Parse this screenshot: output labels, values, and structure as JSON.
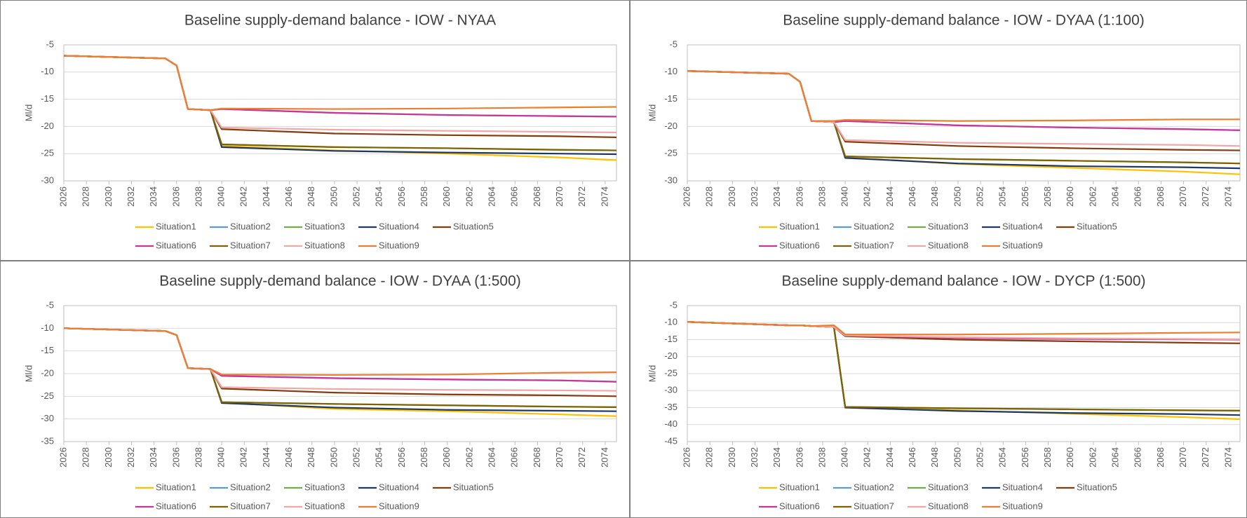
{
  "chart_data": [
    {
      "type": "line",
      "title": "Baseline supply-demand balance - IOW - NYAA",
      "y_label": "Ml/d",
      "x": [
        2026,
        2035,
        2036,
        2037,
        2039,
        2040,
        2050,
        2060,
        2070,
        2075
      ],
      "xlim": [
        2026,
        2075
      ],
      "xticks": [
        2026,
        2028,
        2030,
        2032,
        2034,
        2036,
        2038,
        2040,
        2042,
        2044,
        2046,
        2048,
        2050,
        2052,
        2054,
        2056,
        2058,
        2060,
        2062,
        2064,
        2066,
        2068,
        2070,
        2072,
        2074
      ],
      "ylim": [
        -30,
        -5
      ],
      "yticks": [
        -30,
        -25,
        -20,
        -15,
        -10,
        -5
      ],
      "grid": true,
      "series": [
        {
          "name": "Situation1",
          "color": "#ffc000",
          "values": [
            -7,
            -7.5,
            -8.8,
            -16.8,
            -17.0,
            -23.6,
            -24.4,
            -25.0,
            -25.7,
            -26.2
          ]
        },
        {
          "name": "Situation2",
          "color": "#5b9bd5",
          "values": [
            -7,
            -7.5,
            -8.8,
            -16.8,
            -17.0,
            -16.8,
            -17.5,
            -17.9,
            -18.1,
            -18.2
          ]
        },
        {
          "name": "Situation3",
          "color": "#70ad47",
          "values": [
            -7,
            -7.5,
            -8.8,
            -16.8,
            -17.0,
            -23.3,
            -23.8,
            -24.0,
            -24.3,
            -24.4
          ]
        },
        {
          "name": "Situation4",
          "color": "#1f3864",
          "values": [
            -7,
            -7.5,
            -8.8,
            -16.8,
            -17.0,
            -23.8,
            -24.5,
            -24.8,
            -25.0,
            -25.1
          ]
        },
        {
          "name": "Situation5",
          "color": "#843c0c",
          "values": [
            -7,
            -7.5,
            -8.8,
            -16.8,
            -17.0,
            -20.5,
            -21.3,
            -21.6,
            -21.8,
            -22.0
          ]
        },
        {
          "name": "Situation6",
          "color": "#cc3399",
          "values": [
            -7,
            -7.5,
            -8.8,
            -16.8,
            -17.0,
            -16.8,
            -17.5,
            -17.9,
            -18.1,
            -18.2
          ]
        },
        {
          "name": "Situation7",
          "color": "#806000",
          "values": [
            -7,
            -7.5,
            -8.8,
            -16.8,
            -17.0,
            -23.3,
            -23.8,
            -24.0,
            -24.3,
            -24.4
          ]
        },
        {
          "name": "Situation8",
          "color": "#f4a6a6",
          "values": [
            -7,
            -7.5,
            -8.8,
            -16.8,
            -17.0,
            -20.2,
            -20.6,
            -20.8,
            -21.0,
            -21.1
          ]
        },
        {
          "name": "Situation9",
          "color": "#ed7d31",
          "values": [
            -7,
            -7.5,
            -8.8,
            -16.8,
            -17.0,
            -16.7,
            -16.8,
            -16.7,
            -16.5,
            -16.4
          ]
        }
      ]
    },
    {
      "type": "line",
      "title": "Baseline supply-demand balance - IOW - DYAA (1:100)",
      "y_label": "Ml/d",
      "x": [
        2026,
        2035,
        2036,
        2037,
        2039,
        2040,
        2050,
        2060,
        2070,
        2075
      ],
      "xlim": [
        2026,
        2075
      ],
      "xticks": [
        2026,
        2028,
        2030,
        2032,
        2034,
        2036,
        2038,
        2040,
        2042,
        2044,
        2046,
        2048,
        2050,
        2052,
        2054,
        2056,
        2058,
        2060,
        2062,
        2064,
        2066,
        2068,
        2070,
        2072,
        2074
      ],
      "ylim": [
        -30,
        -5
      ],
      "yticks": [
        -30,
        -25,
        -20,
        -15,
        -10,
        -5
      ],
      "grid": true,
      "series": [
        {
          "name": "Situation1",
          "color": "#ffc000",
          "values": [
            -9.8,
            -10.3,
            -11.8,
            -19.0,
            -19.2,
            -25.7,
            -26.9,
            -27.6,
            -28.3,
            -28.8
          ]
        },
        {
          "name": "Situation2",
          "color": "#5b9bd5",
          "values": [
            -9.8,
            -10.3,
            -11.8,
            -19.0,
            -19.2,
            -19.0,
            -19.8,
            -20.2,
            -20.5,
            -20.7
          ]
        },
        {
          "name": "Situation3",
          "color": "#70ad47",
          "values": [
            -9.8,
            -10.3,
            -11.8,
            -19.0,
            -19.2,
            -25.5,
            -26.0,
            -26.3,
            -26.6,
            -26.8
          ]
        },
        {
          "name": "Situation4",
          "color": "#1f3864",
          "values": [
            -9.8,
            -10.3,
            -11.8,
            -19.0,
            -19.2,
            -25.8,
            -26.8,
            -27.3,
            -27.5,
            -27.7
          ]
        },
        {
          "name": "Situation5",
          "color": "#843c0c",
          "values": [
            -9.8,
            -10.3,
            -11.8,
            -19.0,
            -19.2,
            -22.8,
            -23.6,
            -24.0,
            -24.3,
            -24.4
          ]
        },
        {
          "name": "Situation6",
          "color": "#cc3399",
          "values": [
            -9.8,
            -10.3,
            -11.8,
            -19.0,
            -19.2,
            -19.0,
            -19.8,
            -20.2,
            -20.5,
            -20.7
          ]
        },
        {
          "name": "Situation7",
          "color": "#806000",
          "values": [
            -9.8,
            -10.3,
            -11.8,
            -19.0,
            -19.2,
            -25.5,
            -26.0,
            -26.3,
            -26.6,
            -26.8
          ]
        },
        {
          "name": "Situation8",
          "color": "#f4a6a6",
          "values": [
            -9.8,
            -10.3,
            -11.8,
            -19.0,
            -19.2,
            -22.5,
            -23.0,
            -23.2,
            -23.4,
            -23.6
          ]
        },
        {
          "name": "Situation9",
          "color": "#ed7d31",
          "values": [
            -9.8,
            -10.3,
            -11.8,
            -19.0,
            -19.0,
            -18.8,
            -19.0,
            -18.9,
            -18.7,
            -18.7
          ]
        }
      ]
    },
    {
      "type": "line",
      "title": "Baseline supply-demand balance - IOW - DYAA (1:500)",
      "y_label": "Ml/d",
      "x": [
        2026,
        2035,
        2036,
        2037,
        2039,
        2040,
        2050,
        2060,
        2070,
        2075
      ],
      "xlim": [
        2026,
        2075
      ],
      "xticks": [
        2026,
        2028,
        2030,
        2032,
        2034,
        2036,
        2038,
        2040,
        2042,
        2044,
        2046,
        2048,
        2050,
        2052,
        2054,
        2056,
        2058,
        2060,
        2062,
        2064,
        2066,
        2068,
        2070,
        2072,
        2074
      ],
      "ylim": [
        -35,
        -5
      ],
      "yticks": [
        -35,
        -30,
        -25,
        -20,
        -15,
        -10,
        -5
      ],
      "grid": true,
      "series": [
        {
          "name": "Situation1",
          "color": "#ffc000",
          "values": [
            -10,
            -10.6,
            -11.5,
            -18.8,
            -19.0,
            -26.4,
            -27.8,
            -28.3,
            -29.0,
            -29.4
          ]
        },
        {
          "name": "Situation2",
          "color": "#5b9bd5",
          "values": [
            -10,
            -10.6,
            -11.5,
            -18.8,
            -19.0,
            -20.5,
            -21.0,
            -21.3,
            -21.5,
            -21.8
          ]
        },
        {
          "name": "Situation3",
          "color": "#70ad47",
          "values": [
            -10,
            -10.6,
            -11.5,
            -18.8,
            -19.0,
            -26.3,
            -26.7,
            -27.0,
            -27.3,
            -27.4
          ]
        },
        {
          "name": "Situation4",
          "color": "#1f3864",
          "values": [
            -10,
            -10.6,
            -11.5,
            -18.8,
            -19.0,
            -26.5,
            -27.5,
            -28.0,
            -28.2,
            -28.3
          ]
        },
        {
          "name": "Situation5",
          "color": "#843c0c",
          "values": [
            -10,
            -10.6,
            -11.5,
            -18.8,
            -19.0,
            -23.3,
            -24.2,
            -24.6,
            -24.8,
            -25.0
          ]
        },
        {
          "name": "Situation6",
          "color": "#cc3399",
          "values": [
            -10,
            -10.6,
            -11.5,
            -18.8,
            -19.0,
            -20.5,
            -21.0,
            -21.3,
            -21.5,
            -21.8
          ]
        },
        {
          "name": "Situation7",
          "color": "#806000",
          "values": [
            -10,
            -10.6,
            -11.5,
            -18.8,
            -19.0,
            -26.3,
            -26.7,
            -27.0,
            -27.3,
            -27.4
          ]
        },
        {
          "name": "Situation8",
          "color": "#f4a6a6",
          "values": [
            -10,
            -10.6,
            -11.5,
            -18.8,
            -19.0,
            -23.0,
            -23.4,
            -23.6,
            -23.7,
            -23.8
          ]
        },
        {
          "name": "Situation9",
          "color": "#ed7d31",
          "values": [
            -10,
            -10.6,
            -11.5,
            -18.8,
            -19.0,
            -20.2,
            -20.3,
            -20.2,
            -19.8,
            -19.7
          ]
        }
      ]
    },
    {
      "type": "line",
      "title": "Baseline supply-demand balance - IOW - DYCP (1:500)",
      "y_label": "Ml/d",
      "x": [
        2026,
        2035,
        2036,
        2037,
        2039,
        2040,
        2050,
        2060,
        2070,
        2075
      ],
      "xlim": [
        2026,
        2075
      ],
      "xticks": [
        2026,
        2028,
        2030,
        2032,
        2034,
        2036,
        2038,
        2040,
        2042,
        2044,
        2046,
        2048,
        2050,
        2052,
        2054,
        2056,
        2058,
        2060,
        2062,
        2064,
        2066,
        2068,
        2070,
        2072,
        2074
      ],
      "ylim": [
        -45,
        -5
      ],
      "yticks": [
        -45,
        -40,
        -35,
        -30,
        -25,
        -20,
        -15,
        -10,
        -5
      ],
      "grid": true,
      "series": [
        {
          "name": "Situation1",
          "color": "#ffc000",
          "values": [
            -9.8,
            -10.8,
            -10.8,
            -11.0,
            -11.3,
            -34.8,
            -35.8,
            -36.8,
            -37.8,
            -38.4
          ]
        },
        {
          "name": "Situation2",
          "color": "#5b9bd5",
          "values": [
            -9.8,
            -10.8,
            -10.8,
            -11.0,
            -11.3,
            -13.8,
            -14.5,
            -14.8,
            -14.9,
            -15.0
          ]
        },
        {
          "name": "Situation3",
          "color": "#70ad47",
          "values": [
            -9.8,
            -10.8,
            -10.8,
            -11.0,
            -11.3,
            -34.8,
            -35.2,
            -35.5,
            -35.8,
            -35.9
          ]
        },
        {
          "name": "Situation4",
          "color": "#1f3864",
          "values": [
            -9.8,
            -10.8,
            -10.8,
            -11.0,
            -11.3,
            -35.0,
            -36.0,
            -36.6,
            -36.9,
            -37.2
          ]
        },
        {
          "name": "Situation5",
          "color": "#843c0c",
          "values": [
            -9.8,
            -10.8,
            -10.8,
            -11.0,
            -11.3,
            -14.0,
            -15.0,
            -15.5,
            -15.9,
            -16.1
          ]
        },
        {
          "name": "Situation6",
          "color": "#cc3399",
          "values": [
            -9.8,
            -10.8,
            -10.8,
            -11.0,
            -11.3,
            -13.8,
            -14.5,
            -14.8,
            -14.9,
            -15.0
          ]
        },
        {
          "name": "Situation7",
          "color": "#806000",
          "values": [
            -9.8,
            -10.8,
            -10.8,
            -11.0,
            -11.3,
            -34.8,
            -35.2,
            -35.5,
            -35.8,
            -35.9
          ]
        },
        {
          "name": "Situation8",
          "color": "#f4a6a6",
          "values": [
            -9.8,
            -10.8,
            -10.8,
            -11.0,
            -11.3,
            -13.8,
            -14.3,
            -14.6,
            -14.8,
            -14.9
          ]
        },
        {
          "name": "Situation9",
          "color": "#ed7d31",
          "values": [
            -9.8,
            -10.8,
            -10.8,
            -11.0,
            -10.8,
            -13.5,
            -13.5,
            -13.3,
            -13.0,
            -12.9
          ]
        }
      ]
    }
  ]
}
